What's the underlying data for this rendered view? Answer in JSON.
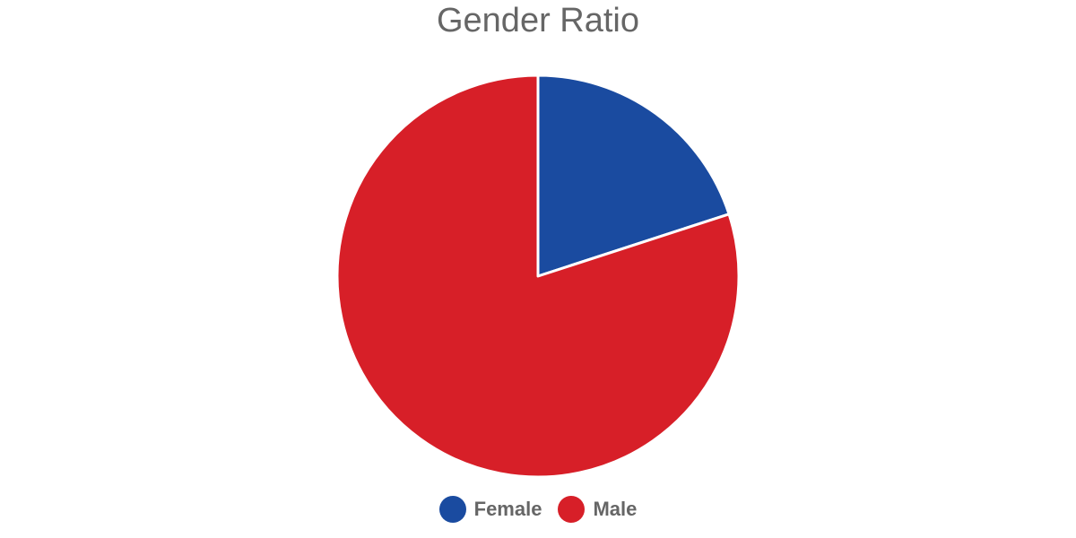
{
  "chart_data": {
    "type": "pie",
    "title": "Gender Ratio",
    "categories": [
      "Female",
      "Male"
    ],
    "values": [
      20,
      80
    ],
    "colors": [
      "#1a4ba0",
      "#d71f28"
    ],
    "legend_position": "bottom"
  }
}
